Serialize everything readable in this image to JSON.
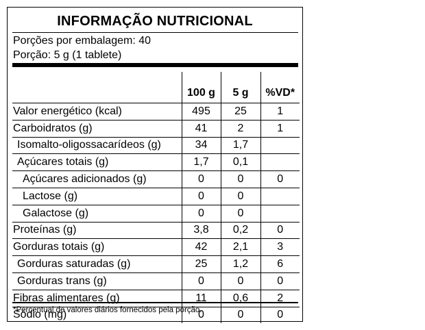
{
  "label": {
    "title": "INFORMAÇÃO NUTRICIONAL",
    "servings_per_package": "Porções por embalagem: 40",
    "serving_size": "Porção: 5 g (1 tablete)",
    "columns": [
      "",
      "100 g",
      "5 g",
      "%VD*"
    ],
    "rows": [
      {
        "name": "Valor energético (kcal)",
        "indent": 0,
        "per100": "495",
        "per_serving": "25",
        "dv": "1"
      },
      {
        "name": "Carboidratos (g)",
        "indent": 0,
        "per100": "41",
        "per_serving": "2",
        "dv": "1"
      },
      {
        "name": "Isomalto-oligossacarídeos (g)",
        "indent": 1,
        "per100": "34",
        "per_serving": "1,7",
        "dv": ""
      },
      {
        "name": "Açúcares totais (g)",
        "indent": 1,
        "per100": "1,7",
        "per_serving": "0,1",
        "dv": ""
      },
      {
        "name": "Açúcares adicionados (g)",
        "indent": 2,
        "per100": "0",
        "per_serving": "0",
        "dv": "0"
      },
      {
        "name": "Lactose (g)",
        "indent": 2,
        "per100": "0",
        "per_serving": "0",
        "dv": ""
      },
      {
        "name": "Galactose (g)",
        "indent": 2,
        "per100": "0",
        "per_serving": "0",
        "dv": ""
      },
      {
        "name": "Proteínas (g)",
        "indent": 0,
        "per100": "3,8",
        "per_serving": "0,2",
        "dv": "0"
      },
      {
        "name": "Gorduras totais (g)",
        "indent": 0,
        "per100": "42",
        "per_serving": "2,1",
        "dv": "3"
      },
      {
        "name": "Gorduras saturadas (g)",
        "indent": 1,
        "per100": "25",
        "per_serving": "1,2",
        "dv": "6"
      },
      {
        "name": "Gorduras trans (g)",
        "indent": 1,
        "per100": "0",
        "per_serving": "0",
        "dv": "0"
      },
      {
        "name": "Fibras alimentares (g)",
        "indent": 0,
        "per100": "11",
        "per_serving": "0,6",
        "dv": "2"
      },
      {
        "name": "Sódio (mg)",
        "indent": 0,
        "per100": "0",
        "per_serving": "0",
        "dv": "0"
      }
    ],
    "footnote": "*Percentual de valores diários fornecidos pela porção."
  }
}
